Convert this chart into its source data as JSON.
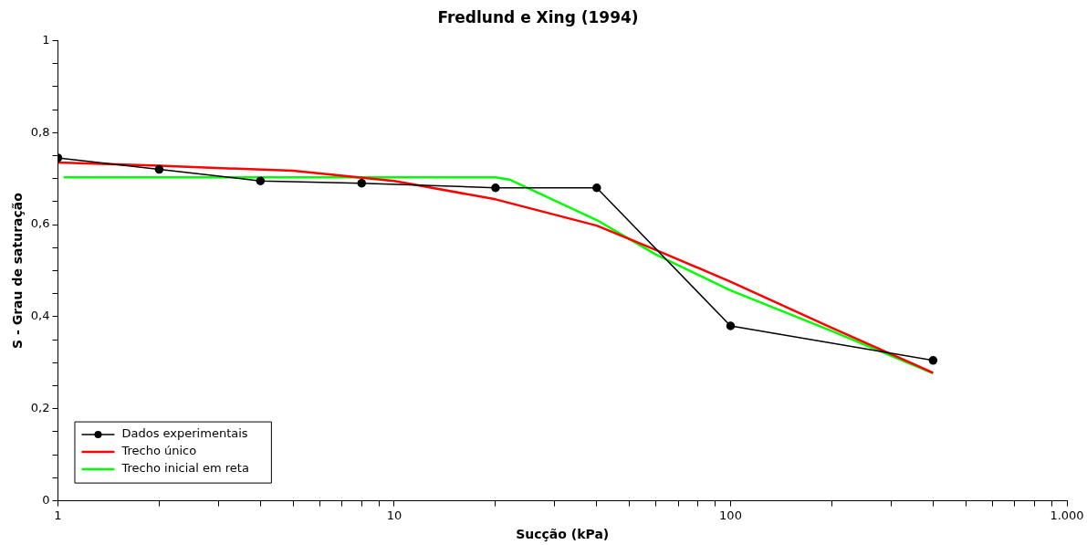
{
  "chart_data": {
    "type": "line",
    "title": "Fredlund e Xing (1994)",
    "xlabel": "Sucção (kPa)",
    "ylabel": "S - Grau de saturação",
    "log": "x",
    "xlim": [
      1,
      1000
    ],
    "xticks": [
      1,
      {
        "value": 2,
        "label": null
      },
      {
        "value": 3,
        "label": null
      },
      {
        "value": 4,
        "label": null
      },
      {
        "value": 5,
        "label": null
      },
      {
        "value": 6,
        "label": null
      },
      {
        "value": 7,
        "label": null
      },
      {
        "value": 8,
        "label": null
      },
      {
        "value": 9,
        "label": null
      },
      10,
      {
        "value": 20,
        "label": null
      },
      {
        "value": 30,
        "label": null
      },
      {
        "value": 40,
        "label": null
      },
      {
        "value": 50,
        "label": null
      },
      {
        "value": 60,
        "label": null
      },
      {
        "value": 70,
        "label": null
      },
      {
        "value": 80,
        "label": null
      },
      {
        "value": 90,
        "label": null
      },
      100,
      {
        "value": 200,
        "label": null
      },
      {
        "value": 300,
        "label": null
      },
      {
        "value": 400,
        "label": null
      },
      {
        "value": 500,
        "label": null
      },
      {
        "value": 600,
        "label": null
      },
      {
        "value": 700,
        "label": null
      },
      {
        "value": 800,
        "label": null
      },
      {
        "value": 900,
        "label": null
      },
      {
        "value": 1000,
        "label": "1.000"
      }
    ],
    "ylim": [
      0,
      1
    ],
    "yticks": [
      0,
      {
        "value": 0.05,
        "label": null
      },
      {
        "value": 0.1,
        "label": null
      },
      {
        "value": 0.15,
        "label": null
      },
      {
        "value": 0.2,
        "label": "0,2"
      },
      {
        "value": 0.25,
        "label": null
      },
      {
        "value": 0.3,
        "label": null
      },
      {
        "value": 0.35,
        "label": null
      },
      {
        "value": 0.4,
        "label": "0,4"
      },
      {
        "value": 0.45,
        "label": null
      },
      {
        "value": 0.5,
        "label": null
      },
      {
        "value": 0.55,
        "label": null
      },
      {
        "value": 0.6,
        "label": "0,6"
      },
      {
        "value": 0.65,
        "label": null
      },
      {
        "value": 0.7,
        "label": null
      },
      {
        "value": 0.75,
        "label": null
      },
      {
        "value": 0.8,
        "label": "0,8"
      },
      {
        "value": 0.85,
        "label": null
      },
      {
        "value": 0.9,
        "label": null
      },
      {
        "value": 0.95,
        "label": null
      },
      1
    ],
    "grid": false,
    "legend": "bottom left",
    "line_style": "solid",
    "series": [
      {
        "name": "Dados experimentais",
        "color": "#000000",
        "marker": "circle",
        "x": [
          1,
          2,
          4,
          8,
          20,
          40,
          100,
          400
        ],
        "values": [
          0.745,
          0.72,
          0.695,
          0.69,
          0.68,
          0.68,
          0.38,
          0.305
        ]
      },
      {
        "name": "Trecho único",
        "color": "#ff0000",
        "marker": "none",
        "x": [
          1,
          2,
          5,
          10,
          20,
          40,
          60,
          100,
          200,
          400
        ],
        "values": [
          0.735,
          0.728,
          0.717,
          0.695,
          0.655,
          0.598,
          0.545,
          0.476,
          0.376,
          0.278
        ]
      },
      {
        "name": "Trecho inicial em reta",
        "color": "#00ff00",
        "marker": "none",
        "x": [
          1.04,
          5,
          10,
          20,
          22,
          40,
          60,
          100,
          200,
          400
        ],
        "values": [
          0.703,
          0.703,
          0.703,
          0.703,
          0.698,
          0.61,
          0.535,
          0.457,
          0.369,
          0.277
        ]
      }
    ]
  }
}
